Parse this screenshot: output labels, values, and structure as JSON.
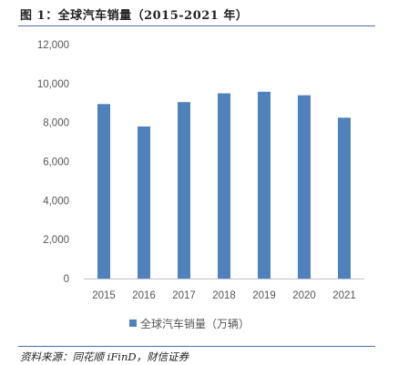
{
  "header": {
    "title": "图 1：全球汽车销量（2015-2021 年）"
  },
  "footer": {
    "source": "资料来源：同花顺 iFinD，财信证券"
  },
  "chart_data": {
    "type": "bar",
    "categories": [
      "2015",
      "2016",
      "2017",
      "2018",
      "2019",
      "2020",
      "2021"
    ],
    "series": [
      {
        "name": "全球汽车销量（万辆）",
        "values": [
          8950,
          7800,
          9050,
          9500,
          9580,
          9400,
          8250
        ],
        "color": "#4f81bd"
      }
    ],
    "ylim": [
      0,
      12000
    ],
    "yticks": [
      "0",
      "2,000",
      "4,000",
      "6,000",
      "8,000",
      "10,000",
      "12,000"
    ],
    "ytick_values": [
      0,
      2000,
      4000,
      6000,
      8000,
      10000,
      12000
    ],
    "grid": false,
    "legend_position": "bottom"
  }
}
